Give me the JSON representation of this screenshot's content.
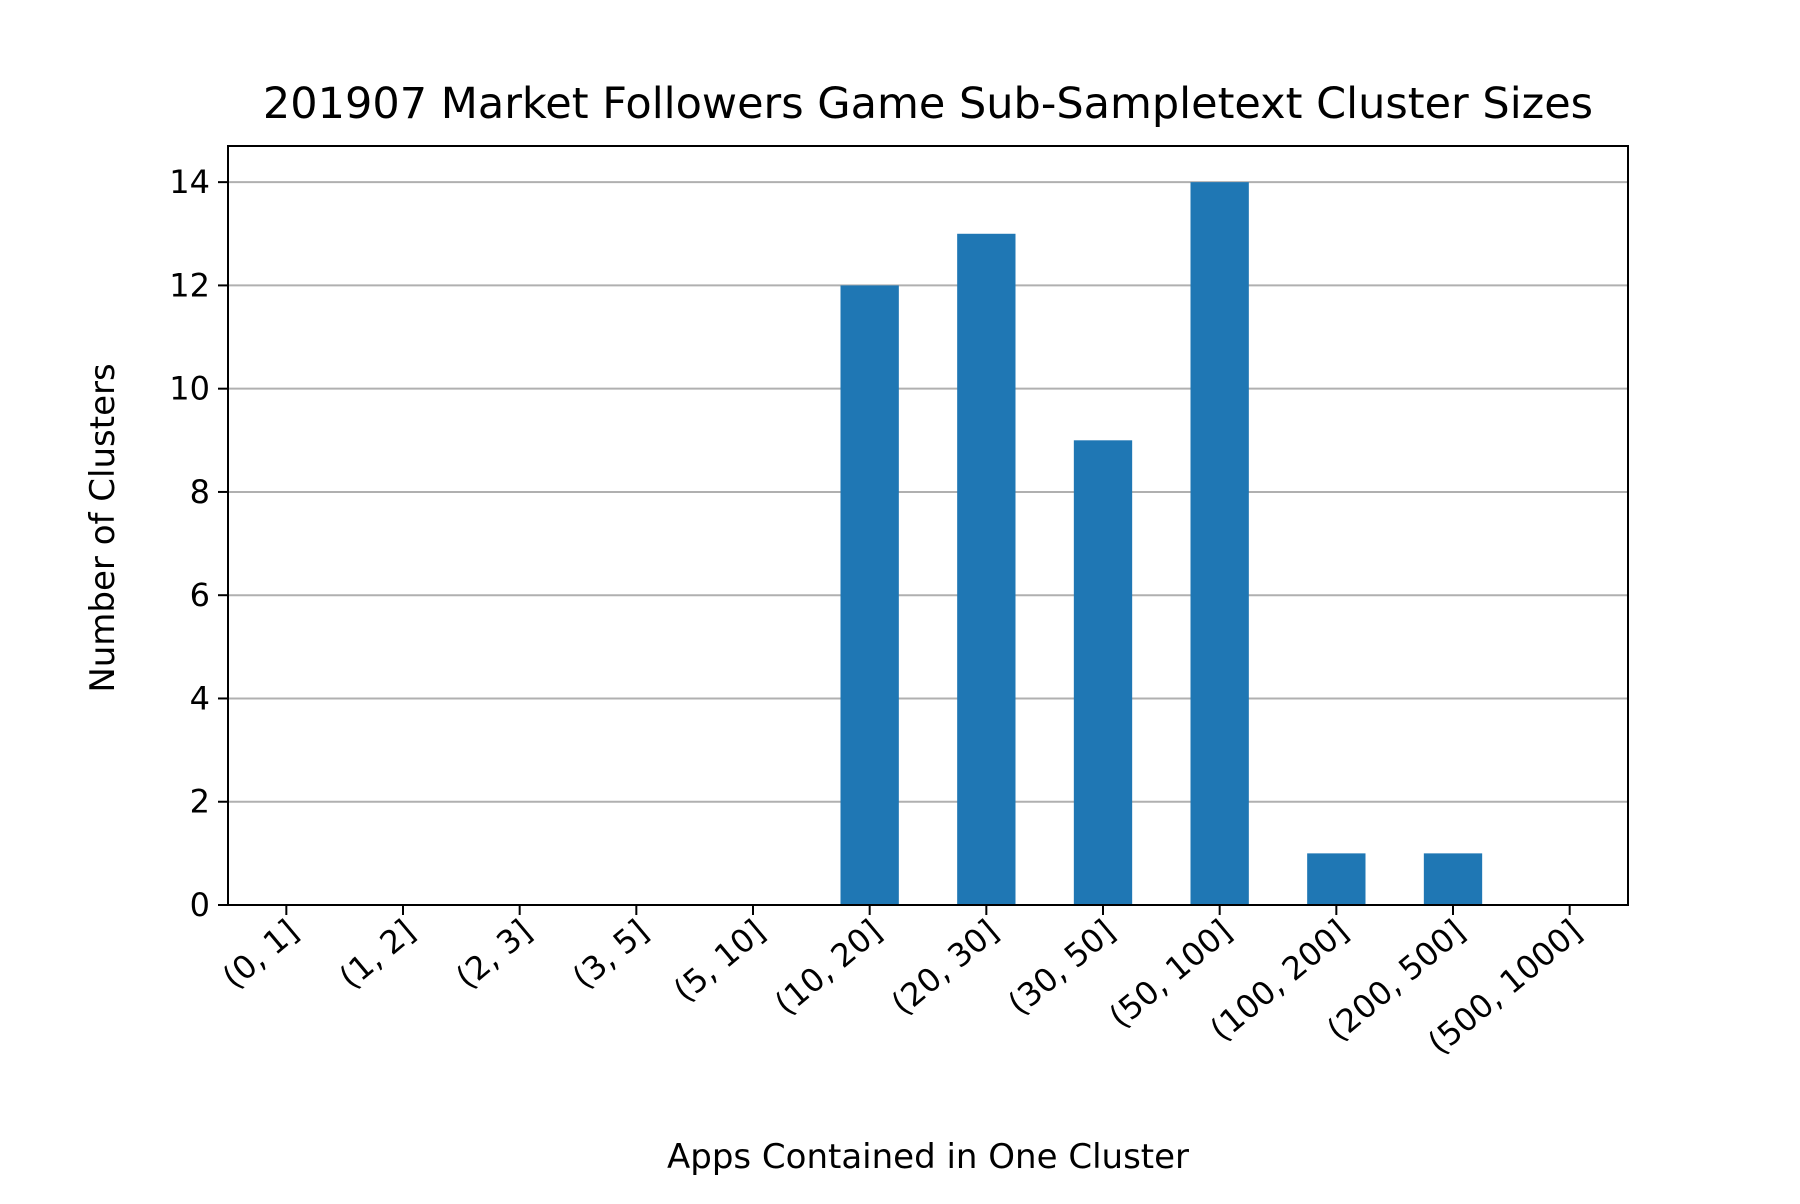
{
  "chart_data": {
    "type": "bar",
    "title": "201907 Market Followers Game Sub-Sampletext Cluster Sizes",
    "xlabel": "Apps Contained in One Cluster",
    "ylabel": "Number of Clusters",
    "categories": [
      "(0, 1]",
      "(1, 2]",
      "(2, 3]",
      "(3, 5]",
      "(5, 10]",
      "(10, 20]",
      "(20, 30]",
      "(30, 50]",
      "(50, 100]",
      "(100, 200]",
      "(200, 500]",
      "(500, 1000]"
    ],
    "values": [
      0,
      0,
      0,
      0,
      0,
      12,
      13,
      9,
      14,
      1,
      1,
      0
    ],
    "ylim": [
      0,
      14.7
    ],
    "yticks": [
      0,
      2,
      4,
      6,
      8,
      10,
      12,
      14
    ],
    "grid": "horizontal",
    "bar_color": "#1f77b4",
    "grid_color": "#b0b0b0",
    "xtick_rotation": "45 degrees"
  }
}
